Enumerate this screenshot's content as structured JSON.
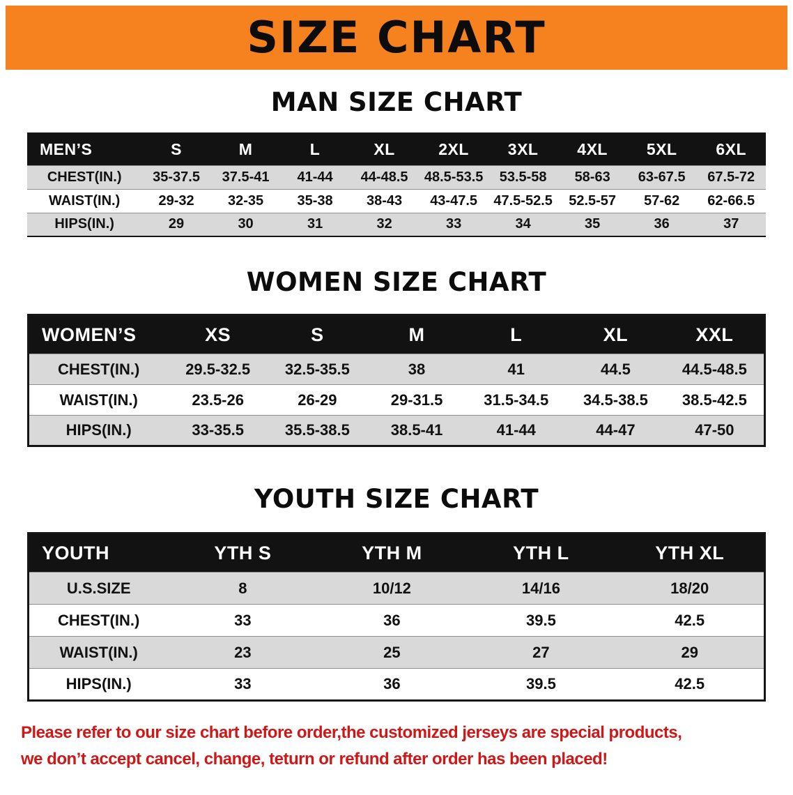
{
  "banner": {
    "title": "SIZE CHART"
  },
  "sections": [
    {
      "heading": "MAN SIZE CHART",
      "table": {
        "header": [
          "MEN’S",
          "S",
          "M",
          "L",
          "XL",
          "2XL",
          "3XL",
          "4XL",
          "5XL",
          "6XL"
        ],
        "rows": [
          [
            "CHEST(IN.)",
            "35-37.5",
            "37.5-41",
            "41-44",
            "44-48.5",
            "48.5-53.5",
            "53.5-58",
            "58-63",
            "63-67.5",
            "67.5-72"
          ],
          [
            "WAIST(IN.)",
            "29-32",
            "32-35",
            "35-38",
            "38-43",
            "43-47.5",
            "47.5-52.5",
            "52.5-57",
            "57-62",
            "62-66.5"
          ],
          [
            "HIPS(IN.)",
            "29",
            "30",
            "31",
            "32",
            "33",
            "34",
            "35",
            "36",
            "37"
          ]
        ]
      }
    },
    {
      "heading": "WOMEN SIZE CHART",
      "table": {
        "header": [
          "WOMEN’S",
          "XS",
          "S",
          "M",
          "L",
          "XL",
          "XXL"
        ],
        "rows": [
          [
            "CHEST(IN.)",
            "29.5-32.5",
            "32.5-35.5",
            "38",
            "41",
            "44.5",
            "44.5-48.5"
          ],
          [
            "WAIST(IN.)",
            "23.5-26",
            "26-29",
            "29-31.5",
            "31.5-34.5",
            "34.5-38.5",
            "38.5-42.5"
          ],
          [
            "HIPS(IN.)",
            "33-35.5",
            "35.5-38.5",
            "38.5-41",
            "41-44",
            "44-47",
            "47-50"
          ]
        ]
      }
    },
    {
      "heading": "YOUTH SIZE CHART",
      "table": {
        "header": [
          "YOUTH",
          "YTH S",
          "YTH M",
          "YTH L",
          "YTH XL"
        ],
        "rows": [
          [
            "U.S.SIZE",
            "8",
            "10/12",
            "14/16",
            "18/20"
          ],
          [
            "CHEST(IN.)",
            "33",
            "36",
            "39.5",
            "42.5"
          ],
          [
            "WAIST(IN.)",
            "23",
            "25",
            "27",
            "29"
          ],
          [
            "HIPS(IN.)",
            "33",
            "36",
            "39.5",
            "42.5"
          ]
        ]
      }
    }
  ],
  "disclaimer": {
    "lines": [
      "Please refer to our size chart before order,the customized jerseys are special products,",
      "we don’t accept cancel, change, teturn or refund after order has been placed!"
    ]
  },
  "colors": {
    "banner_orange": "#f5821f",
    "table_header_black": "#121212",
    "row_stripe_gray": "#d9d9d9",
    "disclaimer_red": "#cf1717"
  }
}
